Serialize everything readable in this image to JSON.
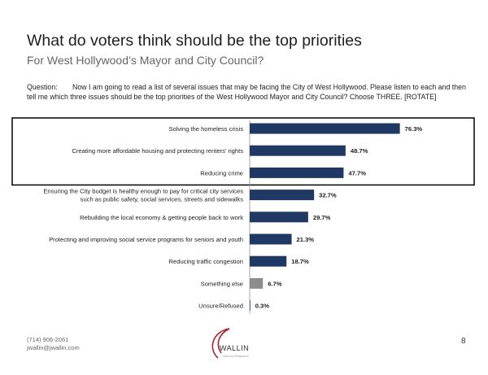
{
  "header": {
    "title": "What do voters think should be the top priorities",
    "subtitle": "For West Hollywood’s Mayor and City Council?"
  },
  "question": {
    "label": "Question:",
    "text": "Now I am going to read a list of several issues that may be facing the City of West Hollywood.  Please listen to each and then tell me which three issues should be the top priorities of the West Hollywood Mayor and City Council? Choose THREE. [ROTATE]"
  },
  "chart_data": {
    "type": "bar",
    "orientation": "horizontal",
    "categories": [
      [
        "Solving the homeless crisis"
      ],
      [
        "Creating more affordable housing and protecting renters’ rights"
      ],
      [
        "Reducing crime"
      ],
      [
        "Ensuring the City budget is healthy enough to pay for critical city services",
        "such as public safety, social services, streets and sidewalks"
      ],
      [
        "Rebuilding the local economy & getting people back to work"
      ],
      [
        "Protecting and improving social service programs for seniors and youth"
      ],
      [
        "Reducing traffic congestion"
      ],
      [
        "Something else"
      ],
      [
        "Unsure/Refused"
      ]
    ],
    "values": [
      76.3,
      48.7,
      47.7,
      32.7,
      29.7,
      21.3,
      18.7,
      6.7,
      0.3
    ],
    "data_labels": [
      "76.3%",
      "48.7%",
      "47.7%",
      "32.7%",
      "29.7%",
      "21.3%",
      "18.7%",
      "6.7%",
      "0.3%"
    ],
    "bar_colors": [
      "#1f3864",
      "#1f3864",
      "#1f3864",
      "#1f3864",
      "#1f3864",
      "#1f3864",
      "#1f3864",
      "#8c8c8c",
      "#1f3864"
    ],
    "highlight_rows": [
      0,
      2
    ],
    "xlim": [
      0,
      100
    ],
    "grid": false
  },
  "footer": {
    "phone": "(714) 906-2061",
    "email": "jwallin@jwallin.com",
    "page_number": "8",
    "logo_name": "WALLIN",
    "logo_tagline": "Opinion Research"
  }
}
